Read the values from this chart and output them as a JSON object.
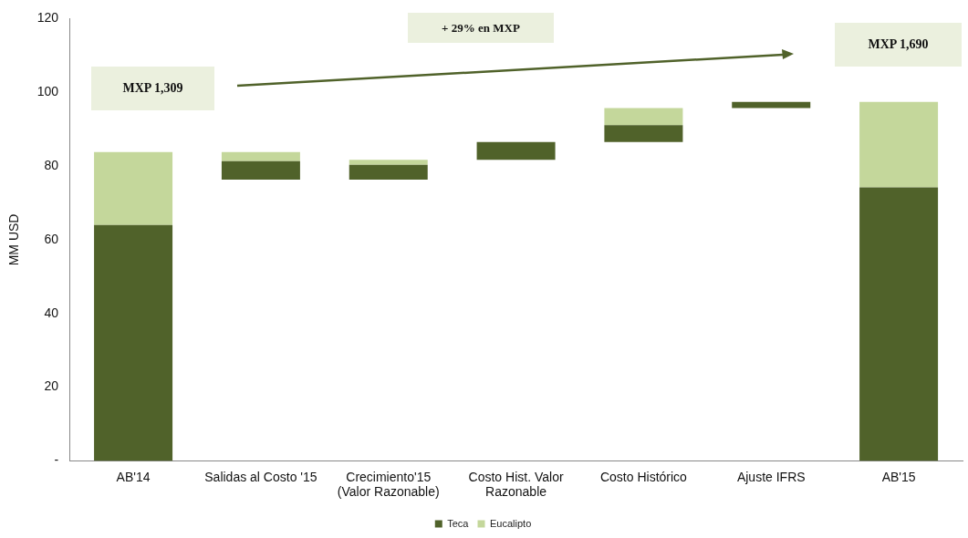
{
  "chart_data": {
    "type": "bar",
    "stacked": true,
    "ylabel": "MM USD",
    "categories": [
      "AB'14",
      "Salidas al Costo '15",
      "Crecimiento'15 (Valor Razonable)",
      "Costo Hist. Valor Razonable",
      "Costo Histórico",
      "Ajuste IFRS",
      "AB'15"
    ],
    "series": [
      {
        "name": "Teca",
        "color": "#50622a",
        "base": [
          0,
          76.3,
          76.3,
          81.7,
          86.5,
          95.7,
          0
        ],
        "values": [
          64,
          5.0,
          4.0,
          4.8,
          4.6,
          1.7,
          74.2
        ]
      },
      {
        "name": "Eucalipto",
        "color": "#c4d79b",
        "base": [
          64,
          81.3,
          80.3,
          null,
          91.1,
          null,
          74.2
        ],
        "values": [
          19.8,
          2.5,
          1.4,
          null,
          4.6,
          null,
          23.2
        ]
      }
    ],
    "ylim": [
      0,
      120
    ],
    "yticks": [
      {
        "value": 0,
        "label": "-"
      },
      20,
      40,
      60,
      80,
      100,
      120
    ],
    "grid": false,
    "legend": "bottom",
    "annotations": [
      "MXP 1,309",
      "+ 29% en MXP",
      "MXP 1,690"
    ]
  }
}
